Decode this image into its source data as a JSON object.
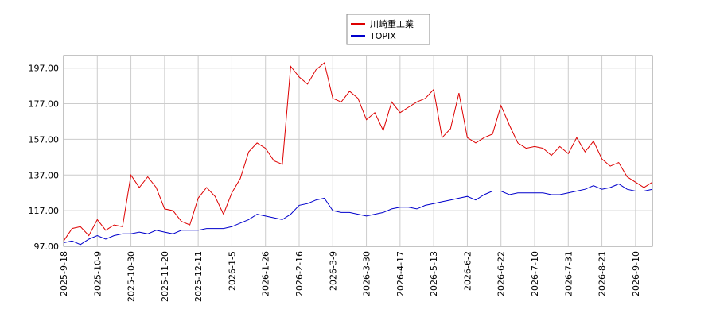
{
  "chart_data": {
    "type": "line",
    "categories": [
      "2025-9-18",
      null,
      null,
      null,
      "2025-10-9",
      null,
      null,
      null,
      "2025-10-30",
      null,
      null,
      null,
      "2025-11-20",
      null,
      null,
      null,
      "2025-12-11",
      null,
      null,
      null,
      "2026-1-5",
      null,
      null,
      null,
      "2026-1-26",
      null,
      null,
      null,
      "2026-2-16",
      null,
      null,
      null,
      "2026-3-9",
      null,
      null,
      null,
      "2026-3-30",
      null,
      null,
      null,
      "2026-4-17",
      null,
      null,
      null,
      "2026-5-13",
      null,
      null,
      null,
      "2026-6-2",
      null,
      null,
      null,
      "2026-6-22",
      null,
      null,
      null,
      "2026-7-10",
      null,
      null,
      null,
      "2026-7-31",
      null,
      null,
      null,
      "2026-8-21",
      null,
      null,
      null,
      "2026-9-10",
      null,
      null
    ],
    "series": [
      {
        "name": "川崎重工業",
        "color": "#dd0000",
        "values": [
          100,
          107,
          108,
          103,
          112,
          106,
          109,
          108,
          137,
          130,
          136,
          130,
          118,
          117,
          111,
          109,
          124,
          130,
          125,
          115,
          127,
          135,
          150,
          155,
          152,
          145,
          143,
          198,
          192,
          188,
          196,
          200,
          180,
          178,
          184,
          180,
          168,
          172,
          162,
          178,
          172,
          175,
          178,
          180,
          185,
          158,
          163,
          183,
          158,
          155,
          158,
          160,
          176,
          165,
          155,
          152,
          153,
          152,
          148,
          153,
          149,
          158,
          150,
          156,
          146,
          142,
          144,
          136,
          133,
          130,
          133
        ]
      },
      {
        "name": "TOPIX",
        "color": "#0000cc",
        "values": [
          99,
          100,
          98,
          101,
          103,
          101,
          103,
          104,
          104,
          105,
          104,
          106,
          105,
          104,
          106,
          106,
          106,
          107,
          107,
          107,
          108,
          110,
          112,
          115,
          114,
          113,
          112,
          115,
          120,
          121,
          123,
          124,
          117,
          116,
          116,
          115,
          114,
          115,
          116,
          118,
          119,
          119,
          118,
          120,
          121,
          122,
          123,
          124,
          125,
          123,
          126,
          128,
          128,
          126,
          127,
          127,
          127,
          127,
          126,
          126,
          127,
          128,
          129,
          131,
          129,
          130,
          132,
          129,
          128,
          128,
          129
        ]
      }
    ],
    "ylim": [
      97,
      204
    ],
    "yticks": [
      {
        "value": 97,
        "label": "97.00"
      },
      {
        "value": 117,
        "label": "117.00"
      },
      {
        "value": 137,
        "label": "137.00"
      },
      {
        "value": 157,
        "label": "157.00"
      },
      {
        "value": 177,
        "label": "177.00"
      },
      {
        "value": 197,
        "label": "197.00"
      }
    ],
    "grid": true
  }
}
